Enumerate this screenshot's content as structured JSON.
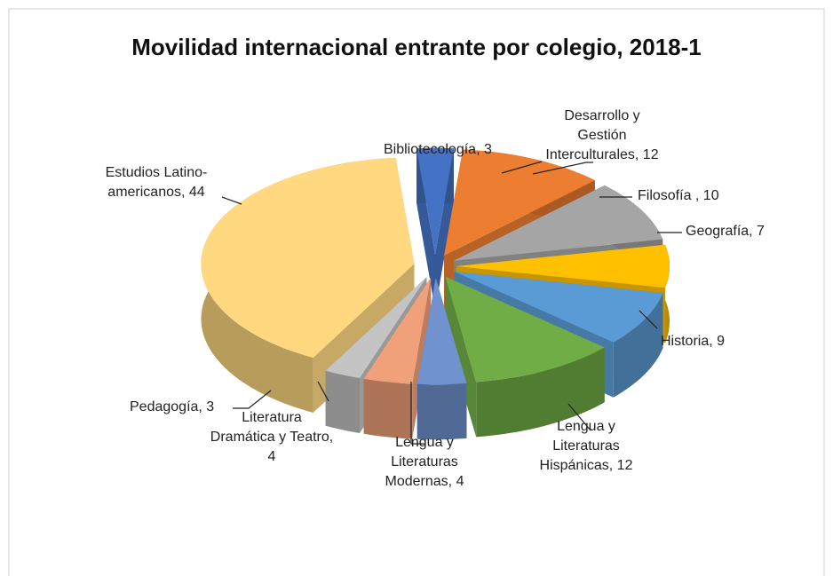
{
  "chart_data": {
    "type": "pie3d",
    "title": "Movilidad internacional entrante por colegio, 2018-1",
    "values": [
      3,
      12,
      10,
      7,
      9,
      12,
      4,
      4,
      3,
      44
    ],
    "value_labels": [
      "Bibliotecología, 3",
      "Desarrollo y\nGestión\nInterculturales, 12",
      "Filosofía , 10",
      "Geografía, 7",
      "Historia, 9",
      "Lengua y\nLiteraturas\nHispánicas, 12",
      "Lengua y\nLiteraturas\nModernas, 4",
      "Literatura\nDramática y Teatro,\n4",
      "Pedagogía, 3",
      "Estudios Latino-\namericanos, 44"
    ],
    "colors": [
      "#4472c4",
      "#ed7d31",
      "#a5a5a5",
      "#ffc000",
      "#5b9bd5",
      "#70ad47",
      "#7092cf",
      "#f1a17a",
      "#c4c4c4",
      "#ffd880"
    ]
  }
}
